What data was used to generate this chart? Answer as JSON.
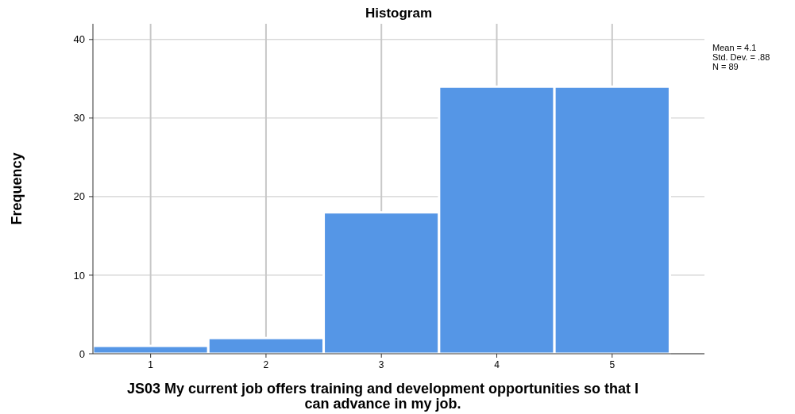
{
  "chart_data": {
    "type": "histogram",
    "title": "Histogram",
    "xlabel": "JS03 My current job offers training and development opportunities so that I can advance in my job.",
    "ylabel": "Frequency",
    "bins": [
      0.5,
      1.5,
      2.5,
      3.5,
      4.5,
      5.5
    ],
    "values": [
      1,
      2,
      18,
      34,
      34
    ],
    "color": "#5596e6",
    "xlim": [
      0.5,
      5.8
    ],
    "xticks": [
      1,
      2,
      3,
      4,
      5
    ],
    "ylim": [
      0,
      42
    ],
    "yticks": [
      0,
      10,
      20,
      30,
      40
    ],
    "grid": true,
    "annotations": [
      "Mean = 4.1",
      "Std. Dev. = .88",
      "N = 89"
    ]
  }
}
